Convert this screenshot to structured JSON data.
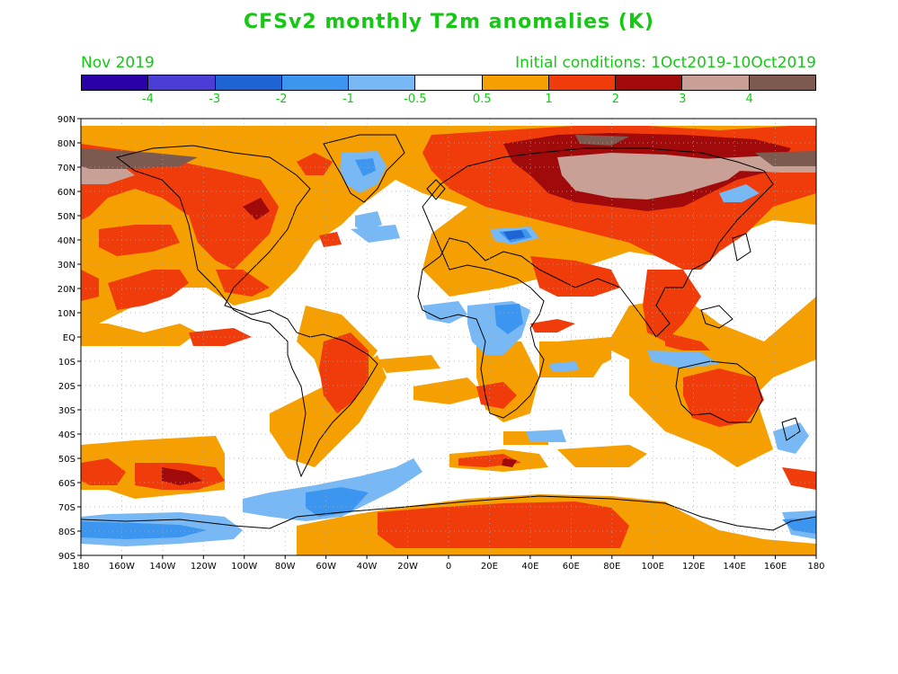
{
  "title": "CFSv2 monthly T2m anomalies (K)",
  "valid_month": "Nov 2019",
  "initial_conditions": "Initial conditions: 1Oct2019-10Oct2019",
  "colorbar": {
    "colors": [
      "#2a00a8",
      "#4a3ed6",
      "#1e64d2",
      "#3c96f0",
      "#78b9f5",
      "#ffffff",
      "#f5a000",
      "#f03c0a",
      "#a00a0a",
      "#c8a096",
      "#7d5a50"
    ],
    "labels": [
      "-4",
      "-3",
      "-2",
      "-1",
      "-0.5",
      "0.5",
      "1",
      "2",
      "3",
      "4"
    ]
  },
  "map": {
    "lat_labels": [
      "90N",
      "80N",
      "70N",
      "60N",
      "50N",
      "40N",
      "30N",
      "20N",
      "10N",
      "EQ",
      "10S",
      "20S",
      "30S",
      "40S",
      "50S",
      "60S",
      "70S",
      "80S",
      "90S"
    ],
    "lon_labels": [
      "180",
      "160W",
      "140W",
      "120W",
      "100W",
      "80W",
      "60W",
      "40W",
      "20W",
      "0",
      "20E",
      "40E",
      "60E",
      "80E",
      "100E",
      "120E",
      "140E",
      "160E",
      "180"
    ],
    "projection": "cylindrical equidistant",
    "grid": "dotted",
    "variable": "2m temperature anomaly",
    "units": "K"
  }
}
